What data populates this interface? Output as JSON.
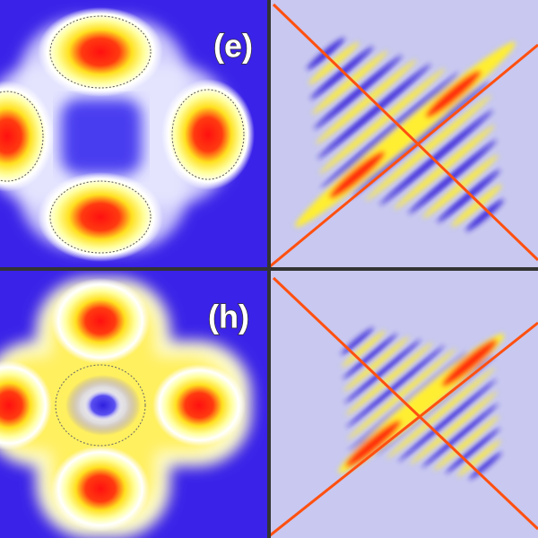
{
  "panels": [
    {
      "label": "(e)"
    },
    {
      "label": "(h)"
    }
  ]
}
